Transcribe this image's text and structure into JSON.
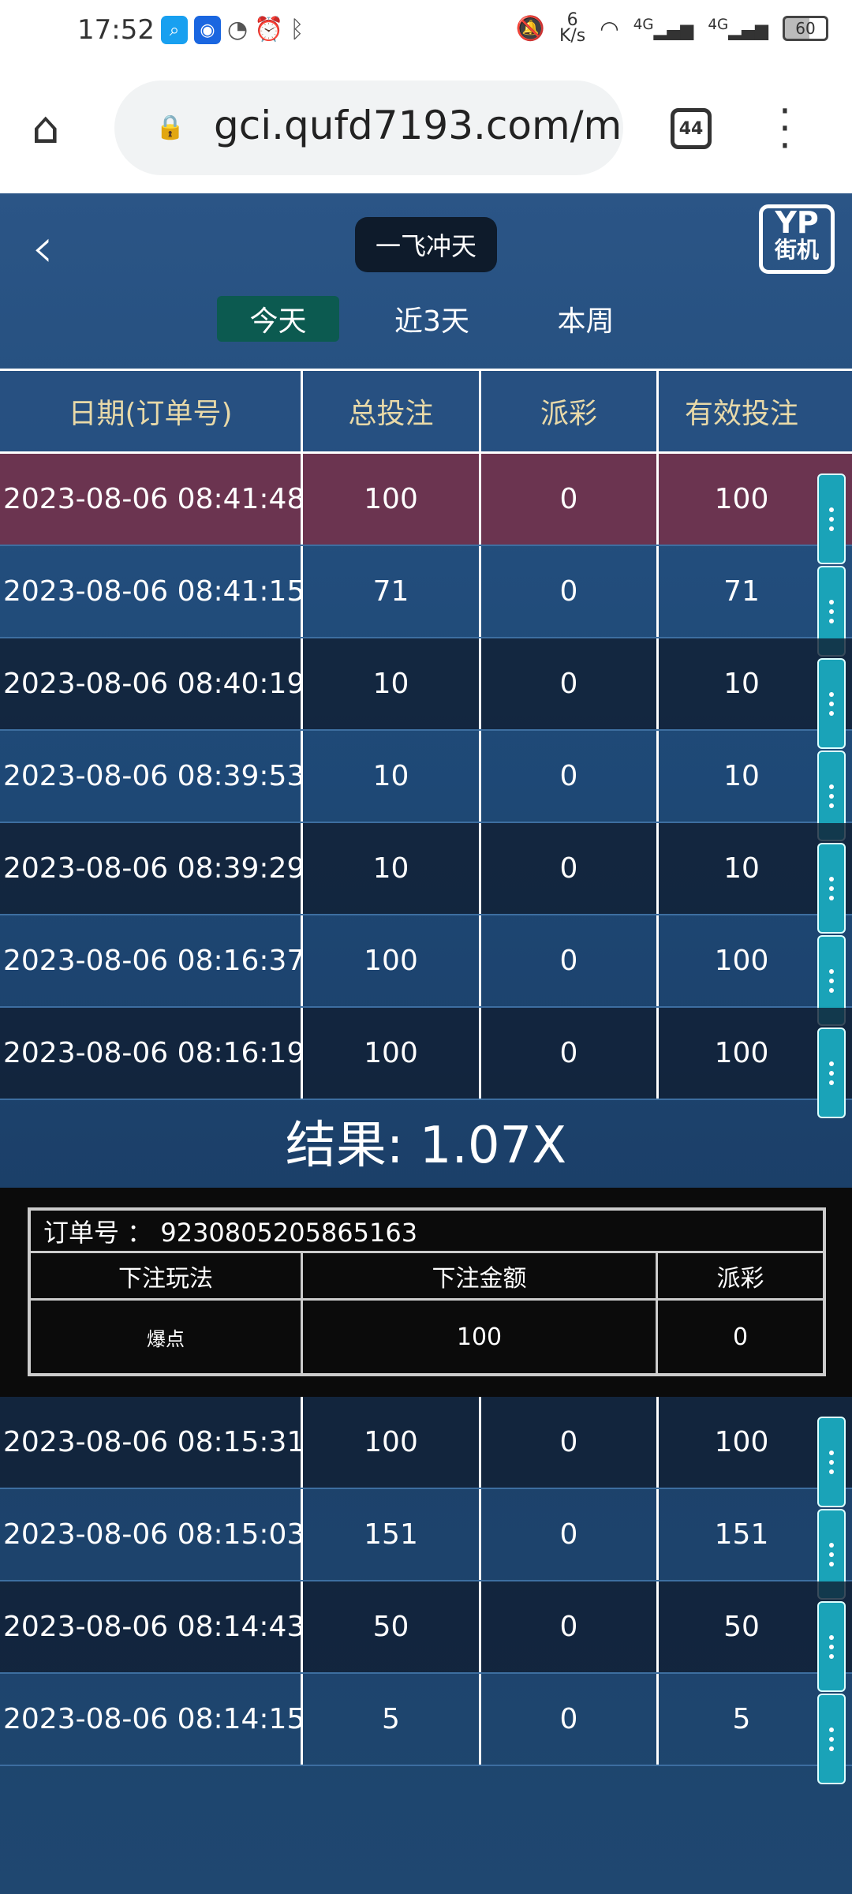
{
  "status_bar": {
    "time": "17:52",
    "net_speed_value": "6",
    "net_speed_unit": "K/s",
    "network": "4G",
    "battery": "60"
  },
  "browser": {
    "url": "gci.qufd7193.com/m",
    "tab_count": "44"
  },
  "header": {
    "title": "一飞冲天",
    "logo_top": "YP",
    "logo_bottom": "街机"
  },
  "ranges": [
    {
      "label": "今天",
      "active": true
    },
    {
      "label": "近3天"
    },
    {
      "label": "本周"
    }
  ],
  "table": {
    "headers": [
      "日期(订单号)",
      "总投注",
      "派彩",
      "有效投注"
    ],
    "rows_top": [
      [
        "2023-08-06 08:41:48",
        "100",
        "0",
        "100"
      ],
      [
        "2023-08-06 08:41:15",
        "71",
        "0",
        "71"
      ],
      [
        "2023-08-06 08:40:19",
        "10",
        "0",
        "10"
      ],
      [
        "2023-08-06 08:39:53",
        "10",
        "0",
        "10"
      ],
      [
        "2023-08-06 08:39:29",
        "10",
        "0",
        "10"
      ],
      [
        "2023-08-06 08:16:37",
        "100",
        "0",
        "100"
      ],
      [
        "2023-08-06 08:16:19",
        "100",
        "0",
        "100"
      ]
    ],
    "rows_bottom": [
      [
        "2023-08-06 08:15:31",
        "100",
        "0",
        "100"
      ],
      [
        "2023-08-06 08:15:03",
        "151",
        "0",
        "151"
      ],
      [
        "2023-08-06 08:14:43",
        "50",
        "0",
        "50"
      ],
      [
        "2023-08-06 08:14:15",
        "5",
        "0",
        "5"
      ]
    ]
  },
  "result": {
    "text": "结果: 1.07X"
  },
  "detail": {
    "order_label": "订单号 ： 9230805205865163",
    "headers": [
      "下注玩法",
      "下注金额",
      "派彩"
    ],
    "values": [
      "爆点",
      "100",
      "0"
    ]
  },
  "colors": {
    "accent": "#1aa3b8",
    "selected_row": "#6b3450",
    "active_tab": "#0c5a50"
  }
}
